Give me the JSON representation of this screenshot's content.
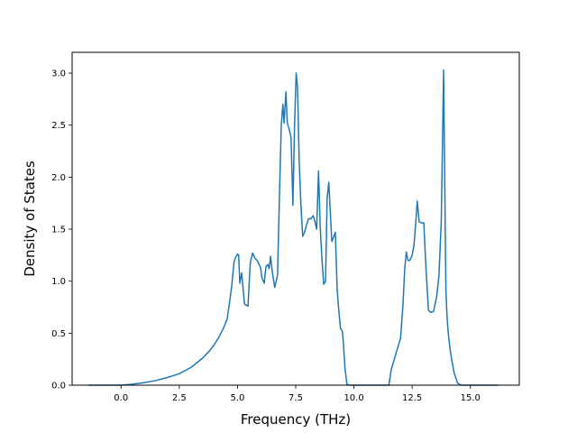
{
  "chart_data": {
    "type": "line",
    "title": "",
    "xlabel": "Frequency (THz)",
    "ylabel": "Density of States",
    "xlim": [
      -2.1,
      17.1
    ],
    "ylim": [
      0,
      3.2
    ],
    "xticks": [
      0.0,
      2.5,
      5.0,
      7.5,
      10.0,
      12.5,
      15.0
    ],
    "xtick_labels": [
      "0.0",
      "2.5",
      "5.0",
      "7.5",
      "10.0",
      "12.5",
      "15.0"
    ],
    "yticks": [
      0.0,
      0.5,
      1.0,
      1.5,
      2.0,
      2.5,
      3.0
    ],
    "ytick_labels": [
      "0.0",
      "0.5",
      "1.0",
      "1.5",
      "2.0",
      "2.5",
      "3.0"
    ],
    "grid": false,
    "colors": {
      "line": "#1f77b4",
      "axes": "#000000"
    },
    "series": [
      {
        "x": [
          -1.4,
          -0.5,
          0.0,
          0.5,
          1.0,
          1.5,
          2.0,
          2.5,
          3.0,
          3.5,
          3.8,
          4.0,
          4.2,
          4.4,
          4.55,
          4.65,
          4.75,
          4.85,
          4.9,
          5.0,
          5.05,
          5.1,
          5.18,
          5.3,
          5.45,
          5.55,
          5.65,
          5.75,
          5.85,
          5.95,
          6.0,
          6.05,
          6.15,
          6.22,
          6.3,
          6.36,
          6.42,
          6.5,
          6.6,
          6.72,
          6.8,
          6.88,
          6.95,
          7.0,
          7.08,
          7.14,
          7.22,
          7.3,
          7.38,
          7.45,
          7.52,
          7.58,
          7.65,
          7.72,
          7.8,
          7.88,
          7.95,
          8.05,
          8.15,
          8.25,
          8.32,
          8.4,
          8.48,
          8.55,
          8.62,
          8.7,
          8.78,
          8.85,
          8.92,
          9.0,
          9.05,
          9.12,
          9.2,
          9.28,
          9.35,
          9.42,
          9.5,
          9.55,
          9.62,
          9.7,
          9.8,
          9.88,
          9.95,
          10.02,
          10.1,
          10.2,
          10.4,
          11.0,
          11.5,
          11.6,
          11.8,
          12.0,
          12.1,
          12.18,
          12.25,
          12.32,
          12.4,
          12.5,
          12.58,
          12.65,
          12.72,
          12.8,
          12.9,
          13.0,
          13.1,
          13.2,
          13.3,
          13.42,
          13.55,
          13.65,
          13.75,
          13.85,
          13.92,
          13.95,
          14.0,
          14.05,
          14.12,
          14.2,
          14.3,
          14.45,
          14.6,
          14.7,
          14.76,
          14.85,
          15.0,
          16.2
        ],
        "y": [
          0.0,
          0.0,
          0.0,
          0.01,
          0.025,
          0.045,
          0.075,
          0.11,
          0.17,
          0.26,
          0.33,
          0.39,
          0.46,
          0.55,
          0.63,
          0.78,
          0.95,
          1.18,
          1.22,
          1.26,
          1.25,
          0.98,
          1.08,
          0.78,
          0.76,
          1.18,
          1.27,
          1.22,
          1.2,
          1.15,
          1.12,
          1.03,
          0.98,
          1.14,
          1.16,
          1.12,
          1.24,
          1.08,
          0.94,
          1.06,
          1.8,
          2.5,
          2.7,
          2.52,
          2.82,
          2.52,
          2.46,
          2.38,
          1.73,
          2.5,
          3.0,
          2.85,
          2.15,
          1.75,
          1.43,
          1.47,
          1.53,
          1.6,
          1.6,
          1.63,
          1.58,
          1.5,
          2.06,
          1.53,
          1.24,
          0.97,
          1.0,
          1.8,
          1.95,
          1.6,
          1.38,
          1.42,
          1.47,
          0.92,
          0.72,
          0.55,
          0.52,
          0.4,
          0.15,
          0.01,
          0.0,
          0.0,
          0.0,
          0.0,
          0.0,
          0.0,
          0.0,
          0.0,
          0.0,
          0.15,
          0.3,
          0.45,
          0.75,
          1.12,
          1.28,
          1.2,
          1.2,
          1.25,
          1.35,
          1.55,
          1.77,
          1.57,
          1.56,
          1.56,
          1.1,
          0.72,
          0.7,
          0.71,
          0.85,
          1.05,
          1.58,
          3.03,
          1.5,
          0.9,
          0.65,
          0.5,
          0.36,
          0.24,
          0.12,
          0.02,
          0.0,
          0.0,
          0.0,
          0.0,
          0.0,
          0.0
        ]
      }
    ]
  }
}
